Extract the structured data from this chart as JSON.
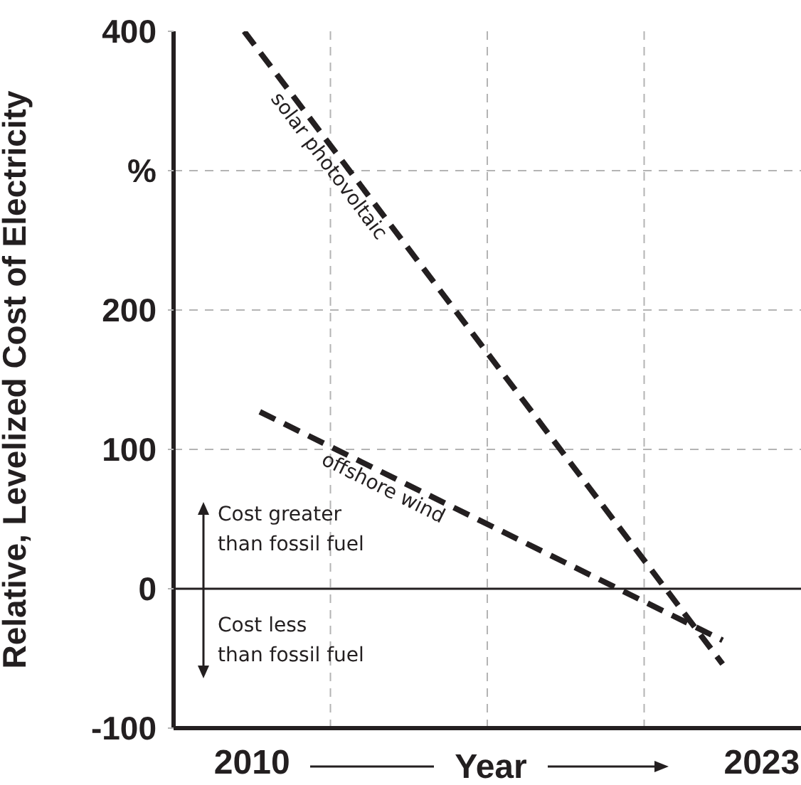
{
  "chart_data": {
    "type": "line",
    "xlabel": "Year",
    "ylabel": "Relative, Levelized Cost of Electricity",
    "series": [
      {
        "x": [
          2009.8,
          2022.0
        ],
        "values": [
          400,
          -54
        ],
        "color": "#231f20"
      },
      {
        "x": [
          2010.2,
          2022.0
        ],
        "values": [
          127,
          -37
        ],
        "color": "#231f20"
      }
    ],
    "xlim": [
      2008,
      2024
    ],
    "xticks": [
      {
        "value": 2010,
        "label": "2010"
      },
      {
        "value": 2012,
        "label": null
      },
      {
        "value": 2016,
        "label": null
      },
      {
        "value": 2020,
        "label": null
      },
      {
        "value": 2023,
        "label": "2023"
      }
    ],
    "ylim": [
      -100,
      400
    ],
    "yticks": [
      -100,
      0,
      100,
      200,
      {
        "value": 300,
        "label": "%"
      },
      400
    ],
    "grid": true,
    "line_style": "dashed",
    "marker": "none",
    "ref_lines": [
      {
        "axis": "y",
        "value": 0,
        "color": "#231f20",
        "line_style": "solid"
      }
    ],
    "annotations": [
      "solar photovoltaic",
      "offshore wind",
      "Cost greater\nthan fossil fuel",
      "Cost less\nthan fossil fuel"
    ]
  }
}
